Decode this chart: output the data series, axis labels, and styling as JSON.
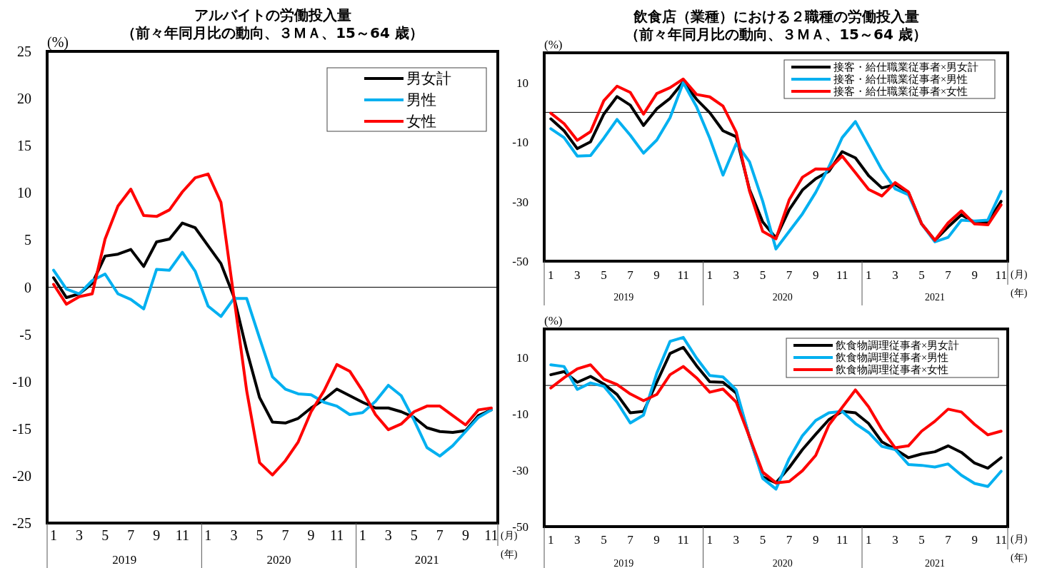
{
  "chart_data": [
    {
      "type": "line",
      "title": "アルバイトの労働投入量",
      "subtitle": "（前々年同月比の動向、３ＭＡ、15～64 歳）",
      "ylabel": "(%)",
      "categories": [
        "1",
        null,
        "3",
        null,
        "5",
        null,
        "7",
        null,
        "9",
        null,
        "11",
        null,
        "1",
        null,
        "3",
        null,
        "5",
        null,
        "7",
        null,
        "9",
        null,
        "11",
        null,
        "1",
        null,
        "3",
        null,
        "5",
        null,
        "7",
        null,
        "9",
        null,
        "11"
      ],
      "ylim": [
        -25,
        25
      ],
      "yticks": [
        -25,
        -20,
        -15,
        -10,
        -5,
        0,
        5,
        10,
        15,
        20,
        25
      ],
      "grid": false,
      "legend": "top right",
      "marker": "none",
      "line_style": "solid",
      "ref_lines": [
        {
          "axis": "y",
          "value": 0,
          "color": "#000000"
        }
      ],
      "annotations": [
        "2019",
        "2020",
        "2021",
        "(月)",
        "(年)"
      ],
      "series": [
        {
          "name": "男女計",
          "color": "#000000",
          "values": [
            1.0,
            -1.1,
            -0.7,
            0.4,
            3.3,
            3.5,
            4.0,
            2.2,
            4.8,
            5.1,
            6.8,
            6.3,
            4.4,
            2.5,
            -1.0,
            -6.7,
            -11.7,
            -14.3,
            -14.4,
            -13.9,
            -12.8,
            -11.9,
            -10.8,
            -11.5,
            -12.2,
            -12.8,
            -12.8,
            -13.2,
            -13.8,
            -14.9,
            -15.3,
            -15.4,
            -15.2,
            -13.6,
            -13.0
          ]
        },
        {
          "name": "男性",
          "color": "#00b0f0",
          "values": [
            1.8,
            -0.2,
            -0.7,
            0.7,
            1.4,
            -0.7,
            -1.3,
            -2.3,
            1.9,
            1.8,
            3.7,
            1.7,
            -2.0,
            -3.1,
            -1.2,
            -1.2,
            -5.4,
            -9.5,
            -10.8,
            -11.3,
            -11.4,
            -12.2,
            -12.6,
            -13.5,
            -13.3,
            -12.1,
            -10.4,
            -11.5,
            -14.1,
            -17.0,
            -17.9,
            -16.8,
            -15.3,
            -13.8,
            -13.0
          ]
        },
        {
          "name": "女性",
          "color": "#ff0000",
          "values": [
            0.3,
            -1.8,
            -1.0,
            -0.7,
            5.1,
            8.6,
            10.4,
            7.6,
            7.5,
            8.2,
            10.1,
            11.6,
            12.0,
            9.0,
            -1.0,
            -11.0,
            -18.6,
            -19.9,
            -18.4,
            -16.4,
            -13.2,
            -11.0,
            -8.2,
            -8.9,
            -11.0,
            -13.5,
            -15.1,
            -14.5,
            -13.2,
            -12.6,
            -12.6,
            -13.6,
            -14.6,
            -13.0,
            -12.8
          ]
        }
      ]
    },
    {
      "type": "line",
      "title": "飲食店（業種）における２職種の労働投入量",
      "subtitle": "（前々年同月比の動向、３ＭＡ、15～64 歳）",
      "ylabel": "(%)",
      "categories": [
        "1",
        null,
        "3",
        null,
        "5",
        null,
        "7",
        null,
        "9",
        null,
        "11",
        null,
        "1",
        null,
        "3",
        null,
        "5",
        null,
        "7",
        null,
        "9",
        null,
        "11",
        null,
        "1",
        null,
        "3",
        null,
        "5",
        null,
        "7",
        null,
        "9",
        null,
        "11"
      ],
      "ylim": [
        -50,
        20
      ],
      "yticks": [
        -50,
        -30,
        -10,
        10
      ],
      "grid": false,
      "legend": "top right",
      "marker": "none",
      "line_style": "solid",
      "ref_lines": [
        {
          "axis": "y",
          "value": 0,
          "color": "#000000"
        }
      ],
      "annotations": [
        "2019",
        "2020",
        "2021",
        "(月)",
        "(年)"
      ],
      "series": [
        {
          "name": "接客・給仕職業従事者×男女計",
          "color": "#000000",
          "values": [
            -2.2,
            -6.2,
            -12.2,
            -9.9,
            -0.6,
            5.3,
            2.4,
            -4.4,
            1.2,
            4.7,
            10.2,
            4.4,
            -0.1,
            -6.2,
            -8.2,
            -25.9,
            -36.8,
            -42.2,
            -32.7,
            -26.1,
            -22.3,
            -19.8,
            -13.2,
            -15.3,
            -21.3,
            -25.4,
            -24.3,
            -26.9,
            -37.5,
            -43.0,
            -38.5,
            -34.4,
            -37.0,
            -37.0,
            -29.9
          ]
        },
        {
          "name": "接客・給仕職業従事者×男性",
          "color": "#00b0f0",
          "values": [
            -5.5,
            -8.5,
            -14.7,
            -14.5,
            -8.7,
            -2.4,
            -7.7,
            -13.7,
            -9.3,
            -1.8,
            10.0,
            1.9,
            -8.7,
            -21.1,
            -10.5,
            -16.6,
            -29.9,
            -45.9,
            -40.0,
            -34.1,
            -26.9,
            -18.3,
            -8.5,
            -3.1,
            -11.2,
            -19.3,
            -25.7,
            -27.7,
            -37.5,
            -43.5,
            -42.0,
            -36.2,
            -36.5,
            -36.2,
            -26.6
          ]
        },
        {
          "name": "接客・給仕職業従事者×女性",
          "color": "#ff0000",
          "values": [
            -0.3,
            -3.8,
            -9.4,
            -6.5,
            3.9,
            8.8,
            6.7,
            -0.6,
            6.3,
            8.3,
            11.2,
            6.0,
            5.2,
            2.1,
            -6.7,
            -26.4,
            -40.0,
            -42.5,
            -29.4,
            -21.8,
            -19.0,
            -19.1,
            -14.7,
            -20.3,
            -25.9,
            -28.1,
            -23.6,
            -26.7,
            -37.5,
            -43.0,
            -37.1,
            -33.1,
            -37.5,
            -37.8,
            -31.1
          ]
        }
      ]
    },
    {
      "type": "line",
      "ylabel": "(%)",
      "categories": [
        "1",
        null,
        "3",
        null,
        "5",
        null,
        "7",
        null,
        "9",
        null,
        "11",
        null,
        "1",
        null,
        "3",
        null,
        "5",
        null,
        "7",
        null,
        "9",
        null,
        "11",
        null,
        "1",
        null,
        "3",
        null,
        "5",
        null,
        "7",
        null,
        "9",
        null,
        "11"
      ],
      "ylim": [
        -50,
        20
      ],
      "yticks": [
        -50,
        -30,
        -10,
        10
      ],
      "grid": false,
      "legend": "top right",
      "marker": "none",
      "line_style": "solid",
      "ref_lines": [
        {
          "axis": "y",
          "value": 0,
          "color": "#000000"
        }
      ],
      "annotations": [
        "2019",
        "2020",
        "2021",
        "(月)",
        "(年)"
      ],
      "series": [
        {
          "name": "飲食物調理従事者×男女計",
          "color": "#000000",
          "values": [
            3.8,
            4.9,
            1.1,
            3.2,
            0.5,
            -3.2,
            -9.7,
            -9.2,
            1.1,
            11.3,
            13.5,
            7.0,
            1.3,
            1.1,
            -2.7,
            -18.3,
            -32.4,
            -34.5,
            -29.1,
            -22.7,
            -17.3,
            -12.1,
            -9.2,
            -9.7,
            -13.5,
            -20.0,
            -22.6,
            -25.6,
            -24.3,
            -23.5,
            -21.4,
            -23.7,
            -27.5,
            -29.3,
            -25.6
          ]
        },
        {
          "name": "飲食物調理従事者×男性",
          "color": "#00b0f0",
          "values": [
            7.3,
            6.7,
            -1.4,
            0.9,
            -0.3,
            -5.9,
            -13.3,
            -10.5,
            4.3,
            15.6,
            17.0,
            9.7,
            3.5,
            3.0,
            -1.6,
            -18.3,
            -32.9,
            -36.7,
            -25.9,
            -17.8,
            -12.4,
            -9.7,
            -9.2,
            -13.5,
            -16.7,
            -21.6,
            -22.7,
            -28.0,
            -28.3,
            -28.9,
            -27.8,
            -31.8,
            -34.7,
            -35.8,
            -30.4
          ]
        },
        {
          "name": "飲食物調理従事者×女性",
          "color": "#ff0000",
          "values": [
            -0.9,
            2.7,
            5.9,
            7.3,
            2.2,
            0.3,
            -3.0,
            -5.4,
            -3.2,
            3.8,
            6.7,
            2.7,
            -2.4,
            -1.3,
            -5.9,
            -18.3,
            -30.7,
            -34.5,
            -34.0,
            -30.2,
            -24.8,
            -14.0,
            -7.8,
            -1.6,
            -7.6,
            -15.6,
            -22.1,
            -21.4,
            -16.2,
            -12.7,
            -8.4,
            -9.4,
            -13.8,
            -17.5,
            -16.2
          ]
        }
      ]
    }
  ]
}
